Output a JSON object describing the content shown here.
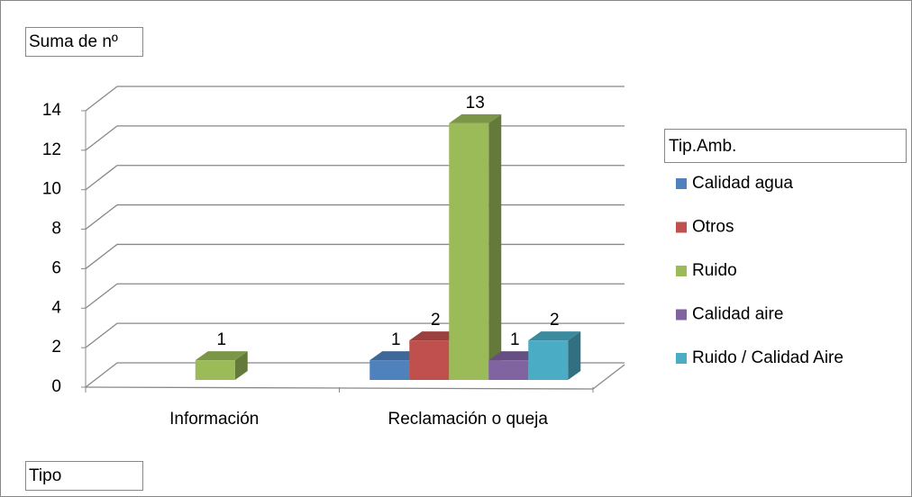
{
  "chart_data": {
    "type": "bar3d",
    "y_field_button": "Suma de nº",
    "x_field_button": "Tipo",
    "legend_title": "Tip.Amb.",
    "categories": [
      "Información",
      "Reclamación o queja"
    ],
    "series": [
      {
        "name": "Calidad agua",
        "color": "#4f81bd",
        "values": [
          null,
          1
        ]
      },
      {
        "name": "Otros",
        "color": "#c0504d",
        "values": [
          null,
          2
        ]
      },
      {
        "name": "Ruido",
        "color": "#9bbb59",
        "values": [
          1,
          13
        ]
      },
      {
        "name": "Calidad aire",
        "color": "#8064a2",
        "values": [
          null,
          1
        ]
      },
      {
        "name": "Ruido / Calidad Aire",
        "color": "#4bacc6",
        "values": [
          null,
          2
        ]
      }
    ],
    "ylim": [
      0,
      14
    ],
    "yticks": [
      0,
      2,
      4,
      6,
      8,
      10,
      12,
      14
    ],
    "grid": true,
    "legend": "right"
  }
}
